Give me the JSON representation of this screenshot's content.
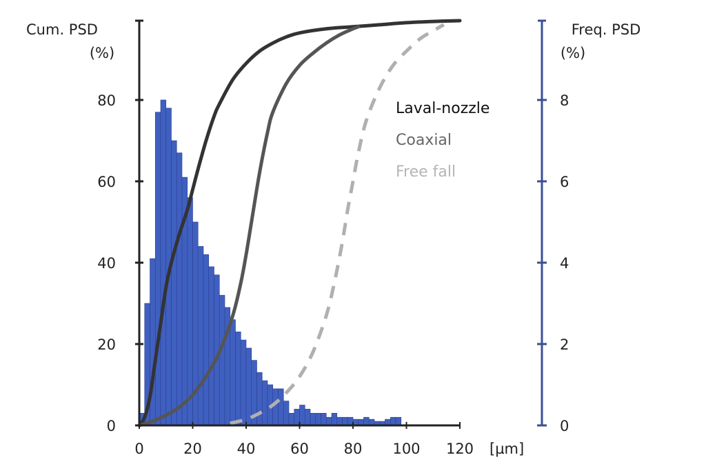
{
  "chart_data": {
    "type": "bar+line",
    "x_axis": {
      "unit_label": "[µm]",
      "range": [
        0,
        120
      ],
      "ticks": [
        0,
        20,
        40,
        60,
        80,
        100,
        120
      ],
      "tick_labels": [
        "0",
        "20",
        "40",
        "60",
        "80",
        "100",
        "120"
      ]
    },
    "y_left": {
      "title_line1": "Cum. PSD",
      "title_line2": "(%)",
      "range": [
        0,
        100
      ],
      "ticks": [
        0,
        20,
        40,
        60,
        80
      ],
      "tick_labels": [
        "0",
        "20",
        "40",
        "60",
        "80"
      ]
    },
    "y_right": {
      "title_line1": "Freq. PSD",
      "title_line2": "(%)",
      "range": [
        0,
        10
      ],
      "ticks": [
        0,
        2,
        4,
        6,
        8
      ],
      "tick_labels": [
        "0",
        "2",
        "4",
        "6",
        "8"
      ]
    },
    "grid": false,
    "legend_placement": "right-middle",
    "histogram": {
      "axis": "right",
      "color": "#4060c0",
      "bin_width": 2,
      "x_start": 0,
      "values": [
        0.3,
        3.0,
        4.1,
        7.7,
        8.0,
        7.8,
        7.0,
        6.7,
        6.1,
        5.6,
        5.0,
        4.4,
        4.2,
        3.9,
        3.7,
        3.2,
        2.9,
        2.6,
        2.3,
        2.1,
        1.9,
        1.6,
        1.3,
        1.1,
        1.0,
        0.9,
        0.9,
        0.6,
        0.3,
        0.4,
        0.5,
        0.4,
        0.3,
        0.3,
        0.3,
        0.2,
        0.3,
        0.2,
        0.2,
        0.2,
        0.15,
        0.15,
        0.2,
        0.15,
        0.1,
        0.1,
        0.15,
        0.2,
        0.2
      ]
    },
    "series": [
      {
        "name": "Laval-nozzle",
        "axis": "left",
        "color": "#333333",
        "dash": false,
        "x": [
          0,
          2,
          4,
          6,
          8,
          10,
          12,
          15,
          18,
          20,
          22,
          25,
          28,
          30,
          35,
          40,
          45,
          50,
          55,
          60,
          70,
          80,
          90,
          100,
          110,
          120
        ],
        "y": [
          0,
          2,
          7,
          16,
          25,
          34,
          40,
          47,
          53,
          58,
          63,
          70,
          76,
          79,
          85,
          89,
          92,
          94,
          95.5,
          96.5,
          97.5,
          98,
          98.5,
          99,
          99.3,
          99.5
        ]
      },
      {
        "name": "Coaxial",
        "axis": "left",
        "color": "#555555",
        "dash": false,
        "x": [
          0,
          5,
          10,
          15,
          20,
          25,
          30,
          35,
          38,
          40,
          42,
          45,
          48,
          50,
          55,
          60,
          65,
          70,
          75,
          80,
          82
        ],
        "y": [
          0,
          1,
          2.5,
          4.5,
          7.5,
          12,
          18,
          27,
          35,
          42,
          50,
          62,
          72,
          77,
          84,
          88.5,
          91.5,
          94,
          96,
          97.5,
          98
        ]
      },
      {
        "name": "Free fall",
        "axis": "left",
        "color": "#b0b0b0",
        "dash": true,
        "x": [
          34,
          40,
          45,
          50,
          55,
          60,
          65,
          70,
          73,
          76,
          78,
          80,
          82,
          85,
          90,
          95,
          100,
          105,
          110,
          114
        ],
        "y": [
          0.5,
          1.5,
          3,
          5,
          8,
          12,
          18,
          27,
          35,
          45,
          53,
          60,
          67,
          75,
          83,
          88.5,
          92,
          95,
          97,
          98.5
        ]
      }
    ],
    "legend": [
      {
        "label": "Laval-nozzle",
        "color": "#111111"
      },
      {
        "label": "Coaxial",
        "color": "#666666"
      },
      {
        "label": "Free fall",
        "color": "#b5b5b5"
      }
    ]
  }
}
